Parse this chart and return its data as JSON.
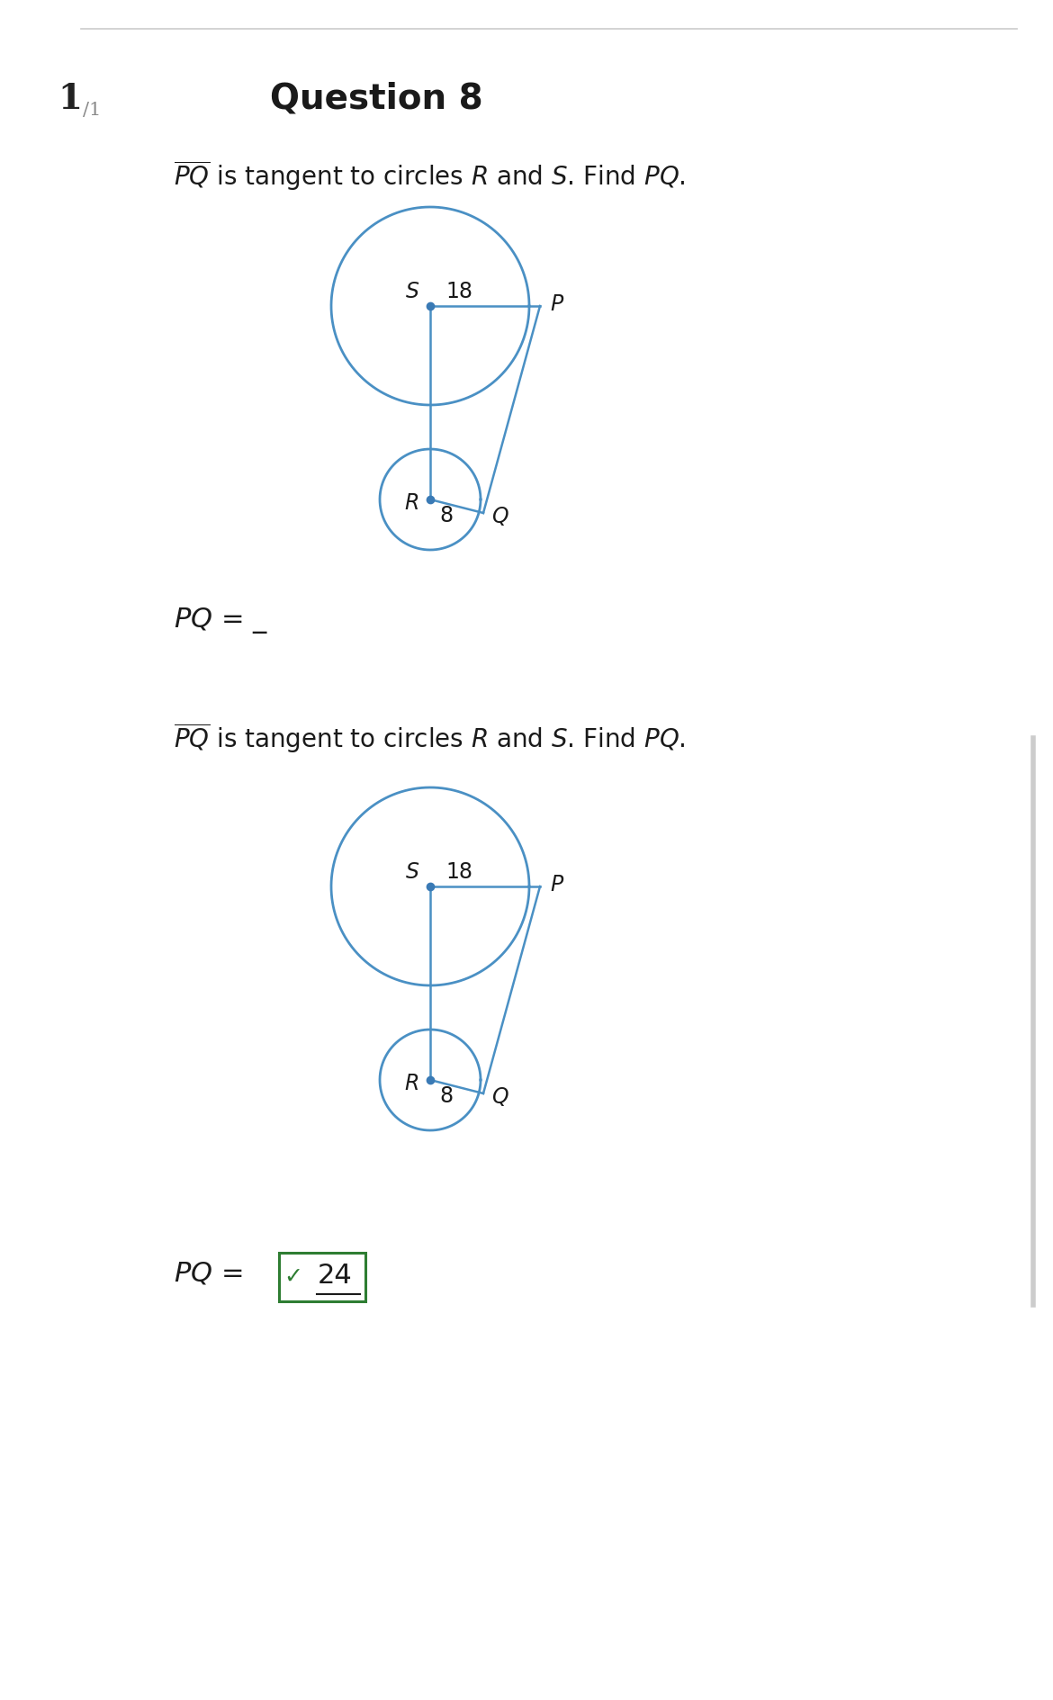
{
  "bg_color": "#ffffff",
  "page_line_color": "#cccccc",
  "title_num": "1",
  "title_num_sub": "/1",
  "question_label": "Question 8",
  "circle_color": "#4a90c4",
  "label_S": "S",
  "label_R": "R",
  "label_P": "P",
  "label_Q": "Q",
  "label_18": "18",
  "label_8": "8",
  "answer_value": "24",
  "answer_box_color": "#2e7d32",
  "checkmark_color": "#2e7d32",
  "dot_color": "#3a7ab5"
}
